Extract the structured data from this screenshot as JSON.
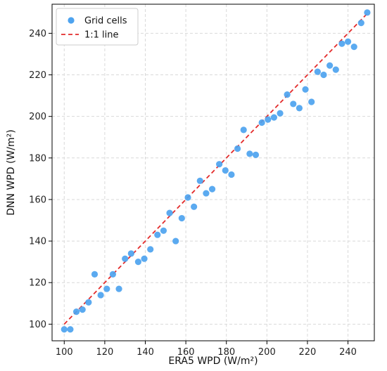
{
  "chart_data": {
    "type": "scatter",
    "xlabel": "ERA5 WPD (W/m²)",
    "ylabel": "DNN WPD (W/m²)",
    "xlim": [
      94,
      253
    ],
    "ylim": [
      92,
      254
    ],
    "xticks": [
      100,
      120,
      140,
      160,
      180,
      200,
      220,
      240
    ],
    "yticks": [
      100,
      120,
      140,
      160,
      180,
      200,
      220,
      240
    ],
    "grid": true,
    "legend_position": "top-left",
    "series": [
      {
        "name": "Grid cells",
        "kind": "points",
        "color": "#4da3ef",
        "points": [
          [
            100,
            97.5
          ],
          [
            103,
            97.5
          ],
          [
            106,
            106
          ],
          [
            109,
            107
          ],
          [
            112,
            110.5
          ],
          [
            115,
            124
          ],
          [
            118,
            114
          ],
          [
            121,
            117
          ],
          [
            124,
            124
          ],
          [
            127,
            117
          ],
          [
            130,
            131.5
          ],
          [
            133,
            134
          ],
          [
            136.5,
            130
          ],
          [
            139.5,
            131.5
          ],
          [
            142.5,
            136
          ],
          [
            146,
            143
          ],
          [
            149,
            145
          ],
          [
            152,
            153.5
          ],
          [
            155,
            140
          ],
          [
            158,
            151
          ],
          [
            161,
            161
          ],
          [
            164,
            156.5
          ],
          [
            167,
            169
          ],
          [
            170,
            163
          ],
          [
            173,
            165
          ],
          [
            176.5,
            177
          ],
          [
            179.5,
            174
          ],
          [
            182.5,
            172
          ],
          [
            185.5,
            184.5
          ],
          [
            188.5,
            193.5
          ],
          [
            191.5,
            182
          ],
          [
            194.5,
            181.5
          ],
          [
            197.5,
            197
          ],
          [
            200.5,
            198.5
          ],
          [
            203.5,
            199.5
          ],
          [
            206.5,
            201.5
          ],
          [
            210,
            210.5
          ],
          [
            213,
            206
          ],
          [
            216,
            204
          ],
          [
            219,
            213
          ],
          [
            222,
            207
          ],
          [
            225,
            221.5
          ],
          [
            228,
            220
          ],
          [
            231,
            224.5
          ],
          [
            234,
            222.5
          ],
          [
            237,
            235
          ],
          [
            240,
            236
          ],
          [
            243,
            233.5
          ],
          [
            246.5,
            245
          ],
          [
            249.5,
            250
          ]
        ]
      },
      {
        "name": "1:1 line",
        "kind": "line",
        "color": "#e32b2b",
        "dash": "dashed",
        "points": [
          [
            100,
            100
          ],
          [
            250,
            250
          ]
        ]
      }
    ]
  }
}
